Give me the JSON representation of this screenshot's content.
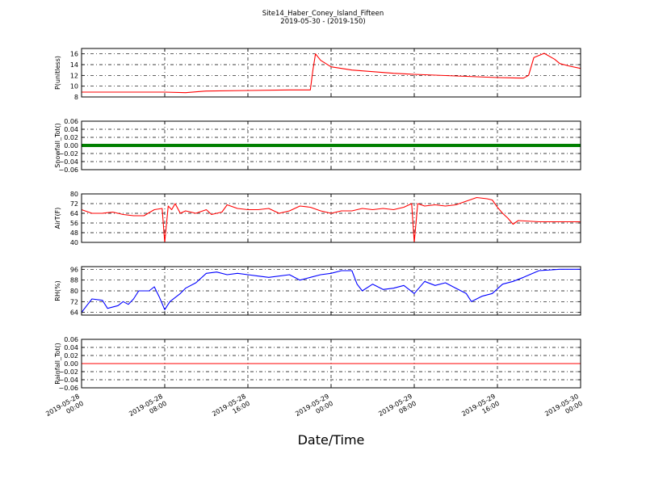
{
  "chart_data": {
    "type": "line",
    "title": "Site14_Haber_Coney_Island_Fifteen",
    "subtitle": "2019-05-30 - (2019-150)",
    "xlabel": "Date/Time",
    "x_ticks": [
      [
        "2019-05-28",
        "00:00"
      ],
      [
        "2019-05-28",
        "08:00"
      ],
      [
        "2019-05-28",
        "16:00"
      ],
      [
        "2019-05-29",
        "00:00"
      ],
      [
        "2019-05-29",
        "08:00"
      ],
      [
        "2019-05-29",
        "16:00"
      ],
      [
        "2019-05-30",
        "00:00"
      ]
    ],
    "xlim": [
      "2019-05-28 00:00",
      "2019-05-30 00:00"
    ],
    "grid": true,
    "panels": [
      {
        "ylabel": "P(unitless)",
        "ylim": [
          8,
          17
        ],
        "yticks": [
          "8",
          "10",
          "12",
          "14",
          "16"
        ],
        "color": "#ff0000",
        "series": [
          {
            "x": "2019-05-28 00:00",
            "y": 8.9
          },
          {
            "x": "2019-05-28 04:00",
            "y": 8.9
          },
          {
            "x": "2019-05-28 08:00",
            "y": 8.9
          },
          {
            "x": "2019-05-28 10:00",
            "y": 8.8
          },
          {
            "x": "2019-05-28 12:00",
            "y": 9.1
          },
          {
            "x": "2019-05-28 16:00",
            "y": 9.2
          },
          {
            "x": "2019-05-28 20:00",
            "y": 9.3
          },
          {
            "x": "2019-05-28 22:00",
            "y": 9.3
          },
          {
            "x": "2019-05-28 22:15",
            "y": 13.0
          },
          {
            "x": "2019-05-28 22:30",
            "y": 16.0
          },
          {
            "x": "2019-05-28 23:00",
            "y": 14.8
          },
          {
            "x": "2019-05-29 00:00",
            "y": 13.6
          },
          {
            "x": "2019-05-29 02:00",
            "y": 13.0
          },
          {
            "x": "2019-05-29 04:00",
            "y": 12.7
          },
          {
            "x": "2019-05-29 06:00",
            "y": 12.4
          },
          {
            "x": "2019-05-29 08:00",
            "y": 12.2
          },
          {
            "x": "2019-05-29 12:00",
            "y": 11.9
          },
          {
            "x": "2019-05-29 16:00",
            "y": 11.6
          },
          {
            "x": "2019-05-29 18:30",
            "y": 11.5
          },
          {
            "x": "2019-05-29 19:00",
            "y": 12.0
          },
          {
            "x": "2019-05-29 19:30",
            "y": 15.3
          },
          {
            "x": "2019-05-29 20:30",
            "y": 16.1
          },
          {
            "x": "2019-05-29 21:30",
            "y": 15.0
          },
          {
            "x": "2019-05-29 22:00",
            "y": 14.2
          },
          {
            "x": "2019-05-29 23:00",
            "y": 13.7
          },
          {
            "x": "2019-05-30 00:00",
            "y": 13.3
          }
        ]
      },
      {
        "ylabel": "Snowfall_Tot()",
        "ylim": [
          -0.06,
          0.06
        ],
        "yticks": [
          "−0.06",
          "−0.04",
          "−0.02",
          "0.00",
          "0.02",
          "0.04",
          "0.06"
        ],
        "color": "#008000",
        "thick": true,
        "series": [
          {
            "x": "2019-05-28 00:00",
            "y": 0.0
          },
          {
            "x": "2019-05-30 00:00",
            "y": 0.0
          }
        ]
      },
      {
        "ylabel": "AirT(F)",
        "ylim": [
          40,
          80
        ],
        "yticks": [
          "40",
          "48",
          "56",
          "64",
          "72",
          "80"
        ],
        "color": "#ff0000",
        "series": [
          {
            "x": "2019-05-28 00:00",
            "y": 67
          },
          {
            "x": "2019-05-28 01:00",
            "y": 64
          },
          {
            "x": "2019-05-28 02:00",
            "y": 64
          },
          {
            "x": "2019-05-28 03:00",
            "y": 65
          },
          {
            "x": "2019-05-28 04:00",
            "y": 63
          },
          {
            "x": "2019-05-28 05:00",
            "y": 62
          },
          {
            "x": "2019-05-28 06:00",
            "y": 62
          },
          {
            "x": "2019-05-28 07:00",
            "y": 67
          },
          {
            "x": "2019-05-28 07:45",
            "y": 68
          },
          {
            "x": "2019-05-28 08:00",
            "y": 40
          },
          {
            "x": "2019-05-28 08:20",
            "y": 70
          },
          {
            "x": "2019-05-28 08:40",
            "y": 67
          },
          {
            "x": "2019-05-28 09:00",
            "y": 72
          },
          {
            "x": "2019-05-28 09:30",
            "y": 64
          },
          {
            "x": "2019-05-28 10:00",
            "y": 66
          },
          {
            "x": "2019-05-28 11:00",
            "y": 64
          },
          {
            "x": "2019-05-28 12:00",
            "y": 67
          },
          {
            "x": "2019-05-28 12:30",
            "y": 63
          },
          {
            "x": "2019-05-28 13:30",
            "y": 65
          },
          {
            "x": "2019-05-28 14:00",
            "y": 71
          },
          {
            "x": "2019-05-28 15:00",
            "y": 68
          },
          {
            "x": "2019-05-28 16:00",
            "y": 67
          },
          {
            "x": "2019-05-28 17:00",
            "y": 67
          },
          {
            "x": "2019-05-28 18:00",
            "y": 68
          },
          {
            "x": "2019-05-28 19:00",
            "y": 64
          },
          {
            "x": "2019-05-28 20:00",
            "y": 66
          },
          {
            "x": "2019-05-28 21:00",
            "y": 70
          },
          {
            "x": "2019-05-28 22:00",
            "y": 69
          },
          {
            "x": "2019-05-28 23:00",
            "y": 66
          },
          {
            "x": "2019-05-29 00:00",
            "y": 64
          },
          {
            "x": "2019-05-29 01:00",
            "y": 66
          },
          {
            "x": "2019-05-29 02:00",
            "y": 66
          },
          {
            "x": "2019-05-29 03:00",
            "y": 68
          },
          {
            "x": "2019-05-29 04:00",
            "y": 67
          },
          {
            "x": "2019-05-29 05:00",
            "y": 68
          },
          {
            "x": "2019-05-29 06:00",
            "y": 67
          },
          {
            "x": "2019-05-29 07:00",
            "y": 69
          },
          {
            "x": "2019-05-29 07:45",
            "y": 72
          },
          {
            "x": "2019-05-29 08:00",
            "y": 40
          },
          {
            "x": "2019-05-29 08:20",
            "y": 72
          },
          {
            "x": "2019-05-29 09:00",
            "y": 70
          },
          {
            "x": "2019-05-29 10:00",
            "y": 71
          },
          {
            "x": "2019-05-29 11:00",
            "y": 70
          },
          {
            "x": "2019-05-29 12:00",
            "y": 71
          },
          {
            "x": "2019-05-29 13:00",
            "y": 74
          },
          {
            "x": "2019-05-29 14:00",
            "y": 77
          },
          {
            "x": "2019-05-29 15:00",
            "y": 76
          },
          {
            "x": "2019-05-29 15:30",
            "y": 75
          },
          {
            "x": "2019-05-29 16:00",
            "y": 69
          },
          {
            "x": "2019-05-29 16:30",
            "y": 64
          },
          {
            "x": "2019-05-29 17:00",
            "y": 60
          },
          {
            "x": "2019-05-29 17:30",
            "y": 55
          },
          {
            "x": "2019-05-29 18:00",
            "y": 58
          },
          {
            "x": "2019-05-29 20:00",
            "y": 57
          },
          {
            "x": "2019-05-29 22:00",
            "y": 57
          },
          {
            "x": "2019-05-30 00:00",
            "y": 57
          }
        ]
      },
      {
        "ylabel": "RH(%)",
        "ylim": [
          62,
          98
        ],
        "yticks": [
          "64",
          "72",
          "80",
          "88",
          "96"
        ],
        "color": "#0000ff",
        "series": [
          {
            "x": "2019-05-28 00:00",
            "y": 64
          },
          {
            "x": "2019-05-28 00:30",
            "y": 69
          },
          {
            "x": "2019-05-28 01:00",
            "y": 74
          },
          {
            "x": "2019-05-28 02:00",
            "y": 73
          },
          {
            "x": "2019-05-28 02:30",
            "y": 67
          },
          {
            "x": "2019-05-28 03:30",
            "y": 69
          },
          {
            "x": "2019-05-28 04:00",
            "y": 72
          },
          {
            "x": "2019-05-28 04:30",
            "y": 70
          },
          {
            "x": "2019-05-28 05:00",
            "y": 74
          },
          {
            "x": "2019-05-28 05:30",
            "y": 80
          },
          {
            "x": "2019-05-28 06:30",
            "y": 80
          },
          {
            "x": "2019-05-28 07:00",
            "y": 83
          },
          {
            "x": "2019-05-28 07:30",
            "y": 75
          },
          {
            "x": "2019-05-28 08:00",
            "y": 66
          },
          {
            "x": "2019-05-28 08:30",
            "y": 72
          },
          {
            "x": "2019-05-28 09:30",
            "y": 78
          },
          {
            "x": "2019-05-28 10:00",
            "y": 82
          },
          {
            "x": "2019-05-28 11:00",
            "y": 86
          },
          {
            "x": "2019-05-28 12:00",
            "y": 93
          },
          {
            "x": "2019-05-28 13:00",
            "y": 94
          },
          {
            "x": "2019-05-28 14:00",
            "y": 92
          },
          {
            "x": "2019-05-28 15:00",
            "y": 93
          },
          {
            "x": "2019-05-28 16:00",
            "y": 92
          },
          {
            "x": "2019-05-28 17:00",
            "y": 91
          },
          {
            "x": "2019-05-28 18:00",
            "y": 90
          },
          {
            "x": "2019-05-28 20:00",
            "y": 92
          },
          {
            "x": "2019-05-28 21:00",
            "y": 88
          },
          {
            "x": "2019-05-28 22:00",
            "y": 90
          },
          {
            "x": "2019-05-28 23:00",
            "y": 92
          },
          {
            "x": "2019-05-29 00:00",
            "y": 93
          },
          {
            "x": "2019-05-29 01:00",
            "y": 95
          },
          {
            "x": "2019-05-29 02:00",
            "y": 95
          },
          {
            "x": "2019-05-29 02:30",
            "y": 85
          },
          {
            "x": "2019-05-29 03:00",
            "y": 80
          },
          {
            "x": "2019-05-29 04:00",
            "y": 85
          },
          {
            "x": "2019-05-29 05:00",
            "y": 81
          },
          {
            "x": "2019-05-29 06:00",
            "y": 82
          },
          {
            "x": "2019-05-29 07:00",
            "y": 84
          },
          {
            "x": "2019-05-29 08:00",
            "y": 78
          },
          {
            "x": "2019-05-29 09:00",
            "y": 87
          },
          {
            "x": "2019-05-29 10:00",
            "y": 84
          },
          {
            "x": "2019-05-29 11:00",
            "y": 86
          },
          {
            "x": "2019-05-29 12:00",
            "y": 82
          },
          {
            "x": "2019-05-29 13:00",
            "y": 78
          },
          {
            "x": "2019-05-29 13:30",
            "y": 72
          },
          {
            "x": "2019-05-29 14:30",
            "y": 76
          },
          {
            "x": "2019-05-29 15:30",
            "y": 78
          },
          {
            "x": "2019-05-29 16:30",
            "y": 85
          },
          {
            "x": "2019-05-29 17:30",
            "y": 87
          },
          {
            "x": "2019-05-29 18:30",
            "y": 90
          },
          {
            "x": "2019-05-29 20:00",
            "y": 95
          },
          {
            "x": "2019-05-29 22:00",
            "y": 96
          },
          {
            "x": "2019-05-30 00:00",
            "y": 96
          }
        ]
      },
      {
        "ylabel": "Rainfall_Tot()",
        "ylim": [
          -0.06,
          0.06
        ],
        "yticks": [
          "−0.06",
          "−0.04",
          "−0.02",
          "0.00",
          "0.02",
          "0.04",
          "0.06"
        ],
        "color": "#ff0000",
        "series": [
          {
            "x": "2019-05-28 00:00",
            "y": 0.0
          },
          {
            "x": "2019-05-30 00:00",
            "y": 0.0
          }
        ]
      }
    ]
  }
}
